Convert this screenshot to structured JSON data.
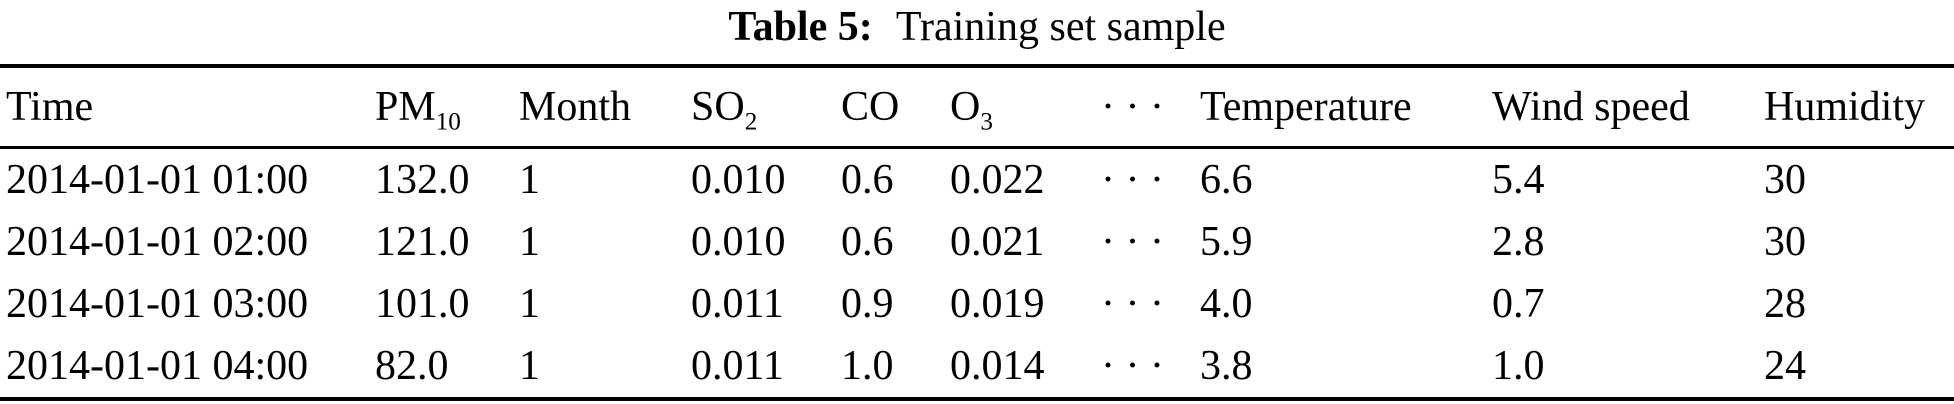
{
  "caption": {
    "label": "Table 5:",
    "text": "Training set sample"
  },
  "table": {
    "columns": [
      {
        "id": "time",
        "base": "Time",
        "sub": ""
      },
      {
        "id": "pm10",
        "base": "PM",
        "sub": "10"
      },
      {
        "id": "month",
        "base": "Month",
        "sub": ""
      },
      {
        "id": "so2",
        "base": "SO",
        "sub": "2"
      },
      {
        "id": "co",
        "base": "CO",
        "sub": ""
      },
      {
        "id": "o3",
        "base": "O",
        "sub": "3"
      },
      {
        "id": "ellipsis",
        "base": "· · ·",
        "sub": ""
      },
      {
        "id": "temperature",
        "base": "Temperature",
        "sub": ""
      },
      {
        "id": "wind-speed",
        "base": "Wind speed",
        "sub": ""
      },
      {
        "id": "humidity",
        "base": "Humidity",
        "sub": ""
      }
    ],
    "rows": [
      [
        "2014-01-01 01:00",
        "132.0",
        "1",
        "0.010",
        "0.6",
        "0.022",
        "· · ·",
        "6.6",
        "5.4",
        "30"
      ],
      [
        "2014-01-01 02:00",
        "121.0",
        "1",
        "0.010",
        "0.6",
        "0.021",
        "· · ·",
        "5.9",
        "2.8",
        "30"
      ],
      [
        "2014-01-01 03:00",
        "101.0",
        "1",
        "0.011",
        "0.9",
        "0.019",
        "· · ·",
        "4.0",
        "0.7",
        "28"
      ],
      [
        "2014-01-01 04:00",
        "82.0",
        "1",
        "0.011",
        "1.0",
        "0.014",
        "· · ·",
        "3.8",
        "1.0",
        "24"
      ]
    ]
  }
}
